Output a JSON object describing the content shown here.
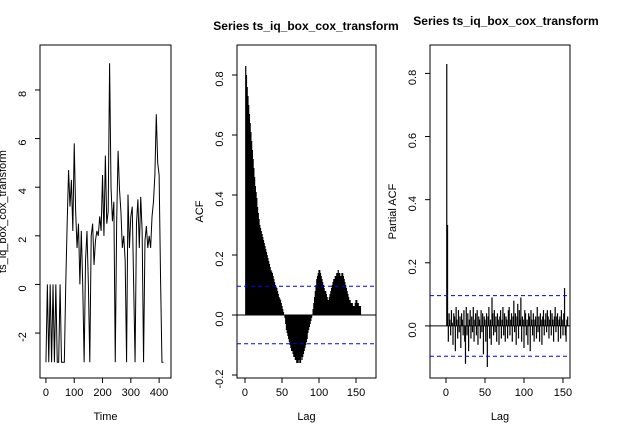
{
  "chart_data": [
    {
      "type": "line",
      "xlabel": "Time",
      "ylabel": "ts_iq_box_cox_transform",
      "color": "#000000",
      "x": [
        0,
        5,
        10,
        15,
        20,
        25,
        30,
        35,
        40,
        45,
        50,
        55,
        60,
        65,
        70,
        75,
        80,
        85,
        90,
        95,
        100,
        105,
        110,
        115,
        120,
        125,
        130,
        135,
        140,
        145,
        150,
        155,
        160,
        165,
        170,
        175,
        180,
        185,
        190,
        195,
        200,
        205,
        210,
        215,
        220,
        225,
        230,
        235,
        240,
        245,
        250,
        255,
        260,
        265,
        270,
        275,
        280,
        285,
        290,
        295,
        300,
        305,
        310,
        315,
        320,
        325,
        330,
        335,
        340,
        345,
        350,
        355,
        360,
        365,
        370,
        375,
        380,
        385,
        390,
        395,
        400,
        405,
        410,
        415
      ],
      "values": [
        -3.2,
        0,
        -3.2,
        0,
        -3.2,
        0,
        -3.2,
        0,
        -3.2,
        -3.2,
        0,
        -3.2,
        -3.2,
        -3.2,
        0,
        2.5,
        4.7,
        3.2,
        4.3,
        2.2,
        5.8,
        3.0,
        1.5,
        2.5,
        0,
        2.2,
        0,
        -3.2,
        1,
        2.2,
        0,
        -3.2,
        2.0,
        2.5,
        0.8,
        1.8,
        2.2,
        2.0,
        2.8,
        2.2,
        4.5,
        2.0,
        5.3,
        2.5,
        3.0,
        9.1,
        4.0,
        2.6,
        3.4,
        -3.2,
        2.6,
        5.5,
        3.9,
        3.0,
        1.5,
        2.0,
        1.0,
        -3.2,
        3.7,
        1.5,
        2.8,
        3.2,
        0,
        -3.2,
        2.5,
        3.5,
        1.5,
        3.6,
        2.2,
        -3.2,
        1.8,
        2.4,
        1.5,
        2.0,
        1.5,
        2.8,
        3.4,
        4.5,
        7.0,
        5.0,
        4.5,
        0.3,
        -3.2,
        -3.2
      ],
      "xlim": [
        -21,
        442
      ],
      "ylim": [
        -3.85,
        9.85
      ],
      "xticks": [
        0,
        100,
        200,
        300,
        400
      ],
      "yticks": [
        -2,
        0,
        2,
        4,
        6,
        8
      ]
    },
    {
      "type": "bar",
      "title": "Series ts_iq_box_cox_transform",
      "xlabel": "Lag",
      "ylabel": "ACF",
      "color": "#000000",
      "ci": 0.096,
      "ci_color": "#0000ff",
      "x": [
        1,
        2,
        3,
        4,
        5,
        6,
        7,
        8,
        9,
        10,
        11,
        12,
        13,
        14,
        15,
        16,
        17,
        18,
        19,
        20,
        21,
        22,
        23,
        24,
        25,
        26,
        27,
        28,
        29,
        30,
        31,
        32,
        33,
        34,
        35,
        36,
        37,
        38,
        39,
        40,
        41,
        42,
        43,
        44,
        45,
        46,
        47,
        48,
        49,
        50,
        51,
        52,
        53,
        54,
        55,
        56,
        57,
        58,
        59,
        60,
        61,
        62,
        63,
        64,
        65,
        66,
        67,
        68,
        69,
        70,
        71,
        72,
        73,
        74,
        75,
        76,
        77,
        78,
        79,
        80,
        81,
        82,
        83,
        84,
        85,
        86,
        87,
        88,
        89,
        90,
        91,
        92,
        93,
        94,
        95,
        96,
        97,
        98,
        99,
        100,
        101,
        102,
        103,
        104,
        105,
        106,
        107,
        108,
        109,
        110,
        111,
        112,
        113,
        114,
        115,
        116,
        117,
        118,
        119,
        120,
        121,
        122,
        123,
        124,
        125,
        126,
        127,
        128,
        129,
        130,
        131,
        132,
        133,
        134,
        135,
        136,
        137,
        138,
        139,
        140,
        141,
        142,
        143,
        144,
        145,
        146,
        147,
        148,
        149,
        150,
        151,
        152,
        153,
        154,
        155,
        156
      ],
      "values": [
        0.83,
        0.8,
        0.76,
        0.73,
        0.7,
        0.67,
        0.64,
        0.61,
        0.58,
        0.55,
        0.52,
        0.49,
        0.46,
        0.43,
        0.41,
        0.39,
        0.36,
        0.34,
        0.32,
        0.3,
        0.29,
        0.28,
        0.27,
        0.26,
        0.25,
        0.24,
        0.23,
        0.22,
        0.21,
        0.2,
        0.19,
        0.18,
        0.17,
        0.16,
        0.15,
        0.145,
        0.14,
        0.13,
        0.12,
        0.11,
        0.1,
        0.095,
        0.09,
        0.08,
        0.07,
        0.06,
        0.055,
        0.05,
        0.04,
        0.03,
        0.02,
        0.01,
        0,
        -0.01,
        -0.03,
        -0.05,
        -0.06,
        -0.07,
        -0.08,
        -0.09,
        -0.1,
        -0.11,
        -0.12,
        -0.12,
        -0.13,
        -0.14,
        -0.14,
        -0.15,
        -0.15,
        -0.16,
        -0.16,
        -0.15,
        -0.16,
        -0.15,
        -0.16,
        -0.14,
        -0.15,
        -0.14,
        -0.13,
        -0.12,
        -0.11,
        -0.1,
        -0.09,
        -0.08,
        -0.06,
        -0.05,
        -0.04,
        -0.03,
        -0.02,
        -0.01,
        0,
        0.02,
        0.04,
        0.06,
        0.08,
        0.1,
        0.12,
        0.13,
        0.14,
        0.15,
        0.15,
        0.14,
        0.13,
        0.12,
        0.11,
        0.1,
        0.09,
        0.08,
        0.08,
        0.07,
        0.06,
        0.05,
        0.05,
        0.06,
        0.07,
        0.08,
        0.09,
        0.1,
        0.11,
        0.12,
        0.12,
        0.13,
        0.13,
        0.14,
        0.14,
        0.15,
        0.14,
        0.14,
        0.13,
        0.13,
        0.14,
        0.14,
        0.13,
        0.12,
        0.11,
        0.1,
        0.09,
        0.08,
        0.07,
        0.06,
        0.05,
        0.05,
        0.04,
        0.04,
        0.04,
        0.03,
        0.03,
        0.03,
        0.04,
        0.05,
        0.05,
        0.04,
        0.04,
        0.03,
        0.03,
        0.03
      ],
      "xlim": [
        -10.8,
        177
      ],
      "ylim": [
        -0.21,
        0.9
      ],
      "xticks": [
        0,
        50,
        100,
        150
      ],
      "yticks": [
        {
          "value": -0.2,
          "label": "-0.2"
        },
        {
          "value": 0,
          "label": "0.0"
        },
        {
          "value": 0.2,
          "label": "0.2"
        },
        {
          "value": 0.4,
          "label": "0.4"
        },
        {
          "value": 0.6,
          "label": "0.6"
        },
        {
          "value": 0.8,
          "label": "0.8"
        }
      ]
    },
    {
      "type": "bar",
      "title": "Series  ts_iq_box_cox_transform",
      "xlabel": "Lag",
      "ylabel": "Partial ACF",
      "color": "#000000",
      "ci": 0.096,
      "ci_color": "#0000ff",
      "x": [
        1,
        2,
        3,
        4,
        5,
        6,
        7,
        8,
        9,
        10,
        11,
        12,
        13,
        14,
        15,
        16,
        17,
        18,
        19,
        20,
        21,
        22,
        23,
        24,
        25,
        26,
        27,
        28,
        29,
        30,
        31,
        32,
        33,
        34,
        35,
        36,
        37,
        38,
        39,
        40,
        41,
        42,
        43,
        44,
        45,
        46,
        47,
        48,
        49,
        50,
        51,
        52,
        53,
        54,
        55,
        56,
        57,
        58,
        59,
        60,
        61,
        62,
        63,
        64,
        65,
        66,
        67,
        68,
        69,
        70,
        71,
        72,
        73,
        74,
        75,
        76,
        77,
        78,
        79,
        80,
        81,
        82,
        83,
        84,
        85,
        86,
        87,
        88,
        89,
        90,
        91,
        92,
        93,
        94,
        95,
        96,
        97,
        98,
        99,
        100,
        101,
        102,
        103,
        104,
        105,
        106,
        107,
        108,
        109,
        110,
        111,
        112,
        113,
        114,
        115,
        116,
        117,
        118,
        119,
        120,
        121,
        122,
        123,
        124,
        125,
        126,
        127,
        128,
        129,
        130,
        131,
        132,
        133,
        134,
        135,
        136,
        137,
        138,
        139,
        140,
        141,
        142,
        143,
        144,
        145,
        146,
        147,
        148,
        149,
        150,
        151,
        152,
        153,
        154,
        155,
        156
      ],
      "values": [
        0.83,
        0.32,
        -0.05,
        0.04,
        0.02,
        -0.03,
        0.05,
        0.01,
        -0.06,
        0.04,
        0.03,
        -0.08,
        0.06,
        0.02,
        -0.04,
        0.05,
        -0.02,
        0.03,
        -0.07,
        0.04,
        0.02,
        -0.03,
        0.05,
        -0.05,
        -0.12,
        0.06,
        -0.03,
        0.04,
        -0.08,
        0.02,
        0.05,
        -0.04,
        0.03,
        -0.02,
        0.06,
        -0.05,
        0.02,
        0.04,
        -0.03,
        0.05,
        -0.06,
        0.03,
        0.02,
        -0.04,
        0.05,
        -0.02,
        0.04,
        -0.09,
        0.03,
        0.02,
        -0.05,
        0.04,
        -0.13,
        0.03,
        0.06,
        -0.04,
        0.02,
        -0.06,
        0.09,
        0.04,
        -0.03,
        0.05,
        -0.02,
        0.03,
        -0.05,
        0.04,
        0.02,
        -0.06,
        0.03,
        0.05,
        -0.04,
        0.02,
        0.06,
        -0.03,
        0.04,
        -0.05,
        0.03,
        0.02,
        -0.04,
        0.05,
        0.06,
        -0.03,
        0.02,
        0.04,
        -0.05,
        0.03,
        0.08,
        -0.02,
        0.04,
        -0.06,
        0.03,
        0.07,
        -0.04,
        0.05,
        0.02,
        0.09,
        -0.05,
        0.03,
        0.02,
        -0.07,
        0.05,
        0.04,
        -0.03,
        0.02,
        -0.06,
        0.04,
        0.03,
        -0.08,
        0.05,
        0.02,
        -0.03,
        0.04,
        -0.05,
        0.02,
        0.03,
        -0.04,
        0.06,
        -0.02,
        0.03,
        -0.05,
        0.04,
        0.02,
        -0.06,
        0.03,
        0.05,
        -0.03,
        0.02,
        0.04,
        -0.02,
        0.05,
        0.03,
        -0.04,
        0.02,
        0.05,
        -0.03,
        0.04,
        0.02,
        -0.05,
        0.03,
        0.06,
        -0.02,
        0.03,
        0.04,
        -0.05,
        0.02,
        0.03,
        -0.04,
        0.05,
        0.02,
        -0.03,
        0.04,
        0.12,
        -0.03,
        -0.05,
        0.02,
        0.03
      ],
      "xlim": [
        -20.5,
        159
      ],
      "ylim": [
        -0.165,
        0.89
      ],
      "xticks": [
        0,
        50,
        100,
        150
      ],
      "yticks": [
        {
          "value": 0,
          "label": "0.0"
        },
        {
          "value": 0.2,
          "label": "0.2"
        },
        {
          "value": 0.4,
          "label": "0.4"
        },
        {
          "value": 0.6,
          "label": "0.6"
        },
        {
          "value": 0.8,
          "label": "0.8"
        }
      ]
    }
  ]
}
